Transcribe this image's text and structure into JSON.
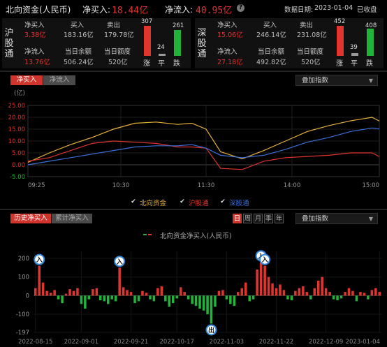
{
  "header": {
    "title": "北向资金(人民币)",
    "net_buy_label": "净买入:",
    "net_buy_value": "18.44亿",
    "net_inflow_label": "净流入:",
    "net_inflow_value": "40.95亿",
    "date_label": "数据日期:",
    "date_value": "2023-01-04",
    "status": "已收盘"
  },
  "sh": {
    "name": "沪股通",
    "net_buy_label": "净买入",
    "net_buy": "3.38亿",
    "buy_label": "买入",
    "buy": "183.16亿",
    "sell_label": "卖出",
    "sell": "179.78亿",
    "net_inflow_label": "净流入",
    "net_inflow": "13.76亿",
    "balance_label": "当日余额",
    "balance": "506.24亿",
    "quota_label": "当日额度",
    "quota": "520亿",
    "up": "307",
    "flat": "24",
    "down": "261",
    "up_label": "涨",
    "flat_label": "平",
    "down_label": "跌",
    "up_frac": 1.0,
    "flat_frac": 0.08,
    "down_frac": 0.85
  },
  "sz": {
    "name": "深股通",
    "net_buy_label": "净买入",
    "net_buy": "15.06亿",
    "buy_label": "买入",
    "buy": "246.14亿",
    "sell_label": "卖出",
    "sell": "231.08亿",
    "net_inflow_label": "净流入",
    "net_inflow": "27.18亿",
    "balance_label": "当日余额",
    "balance": "492.82亿",
    "quota_label": "当日额度",
    "quota": "520亿",
    "up": "452",
    "flat": "39",
    "down": "408",
    "up_label": "涨",
    "flat_label": "平",
    "down_label": "跌",
    "up_frac": 1.0,
    "flat_frac": 0.09,
    "down_frac": 0.9
  },
  "intraday": {
    "tab_active": "净买入",
    "tab_inactive": "净流入",
    "overlay_label": "叠加指数",
    "legend": [
      "北向资金",
      "沪股通",
      "深股通"
    ],
    "colors": {
      "north": "#e8b23a",
      "sh": "#e0352f",
      "sz": "#3a6fd8"
    }
  },
  "history": {
    "tab_active": "历史净买入",
    "tab_inactive": "累计净买入",
    "periods": [
      "日",
      "周",
      "月",
      "季",
      "年"
    ],
    "overlay_label": "叠加指数",
    "legend": "北向资金净买入(人民币)",
    "markers": [
      "入",
      "入",
      "入",
      "入",
      "出"
    ]
  },
  "chart_data": [
    {
      "type": "line",
      "ylabel": "(亿)",
      "ylim": [
        -5,
        25
      ],
      "yticks": [
        "25.00",
        "20.00",
        "15.00",
        "10.00",
        "5.00",
        "0.00",
        "-5.00"
      ],
      "xticks": [
        "09:25",
        "10:30",
        "11:30",
        "14:00",
        "15:00"
      ],
      "x": [
        "09:25",
        "09:40",
        "09:55",
        "10:10",
        "10:25",
        "10:40",
        "10:55",
        "11:10",
        "11:20",
        "11:30",
        "13:10",
        "13:25",
        "13:40",
        "13:55",
        "14:10",
        "14:25",
        "14:40",
        "14:55",
        "15:00"
      ],
      "series": [
        {
          "name": "北向资金",
          "values": [
            1.0,
            5.0,
            8.5,
            11.5,
            15.0,
            17.5,
            18.0,
            17.0,
            17.5,
            15.0,
            5.5,
            2.5,
            6.0,
            10.0,
            14.0,
            16.5,
            18.5,
            20.0,
            18.4
          ]
        },
        {
          "name": "沪股通",
          "values": [
            1.5,
            3.0,
            6.0,
            9.0,
            10.0,
            9.5,
            9.0,
            7.5,
            7.5,
            7.0,
            -1.5,
            -2.0,
            1.5,
            3.0,
            3.5,
            4.0,
            5.0,
            5.0,
            3.4
          ]
        },
        {
          "name": "深股通",
          "values": [
            0.0,
            1.5,
            3.0,
            4.5,
            6.0,
            7.5,
            8.0,
            8.0,
            8.5,
            7.0,
            4.0,
            3.0,
            4.0,
            6.5,
            9.5,
            11.5,
            14.0,
            15.5,
            15.1
          ]
        }
      ]
    },
    {
      "type": "bar",
      "ylim": [
        -197,
        200
      ],
      "yticks": [
        "200",
        "100",
        "0",
        "-100",
        "-197"
      ],
      "xticks": [
        "2022-08-15",
        "2022-09-01",
        "2022-09-21",
        "2022-10-17",
        "2022-11-03",
        "2022-11-22",
        "2022-12-09",
        "2023-01-04"
      ],
      "values": [
        40,
        160,
        70,
        25,
        15,
        30,
        -20,
        -40,
        10,
        35,
        25,
        40,
        -45,
        -70,
        -20,
        35,
        40,
        -25,
        -30,
        -45,
        -20,
        -30,
        150,
        45,
        30,
        20,
        -40,
        -30,
        25,
        15,
        -20,
        -30,
        40,
        50,
        -30,
        -60,
        -40,
        -15,
        45,
        20,
        -20,
        -45,
        -55,
        -70,
        -80,
        -100,
        -150,
        -60,
        25,
        30,
        -20,
        -45,
        -55,
        20,
        40,
        70,
        -30,
        -20,
        140,
        180,
        160,
        100,
        65,
        40,
        60,
        30,
        -20,
        -25,
        25,
        40,
        50,
        20,
        -20,
        40,
        80,
        100,
        40,
        20,
        -20,
        -25,
        -15,
        20,
        40,
        25,
        -30,
        20,
        15,
        -20,
        30,
        40,
        20
      ]
    }
  ]
}
